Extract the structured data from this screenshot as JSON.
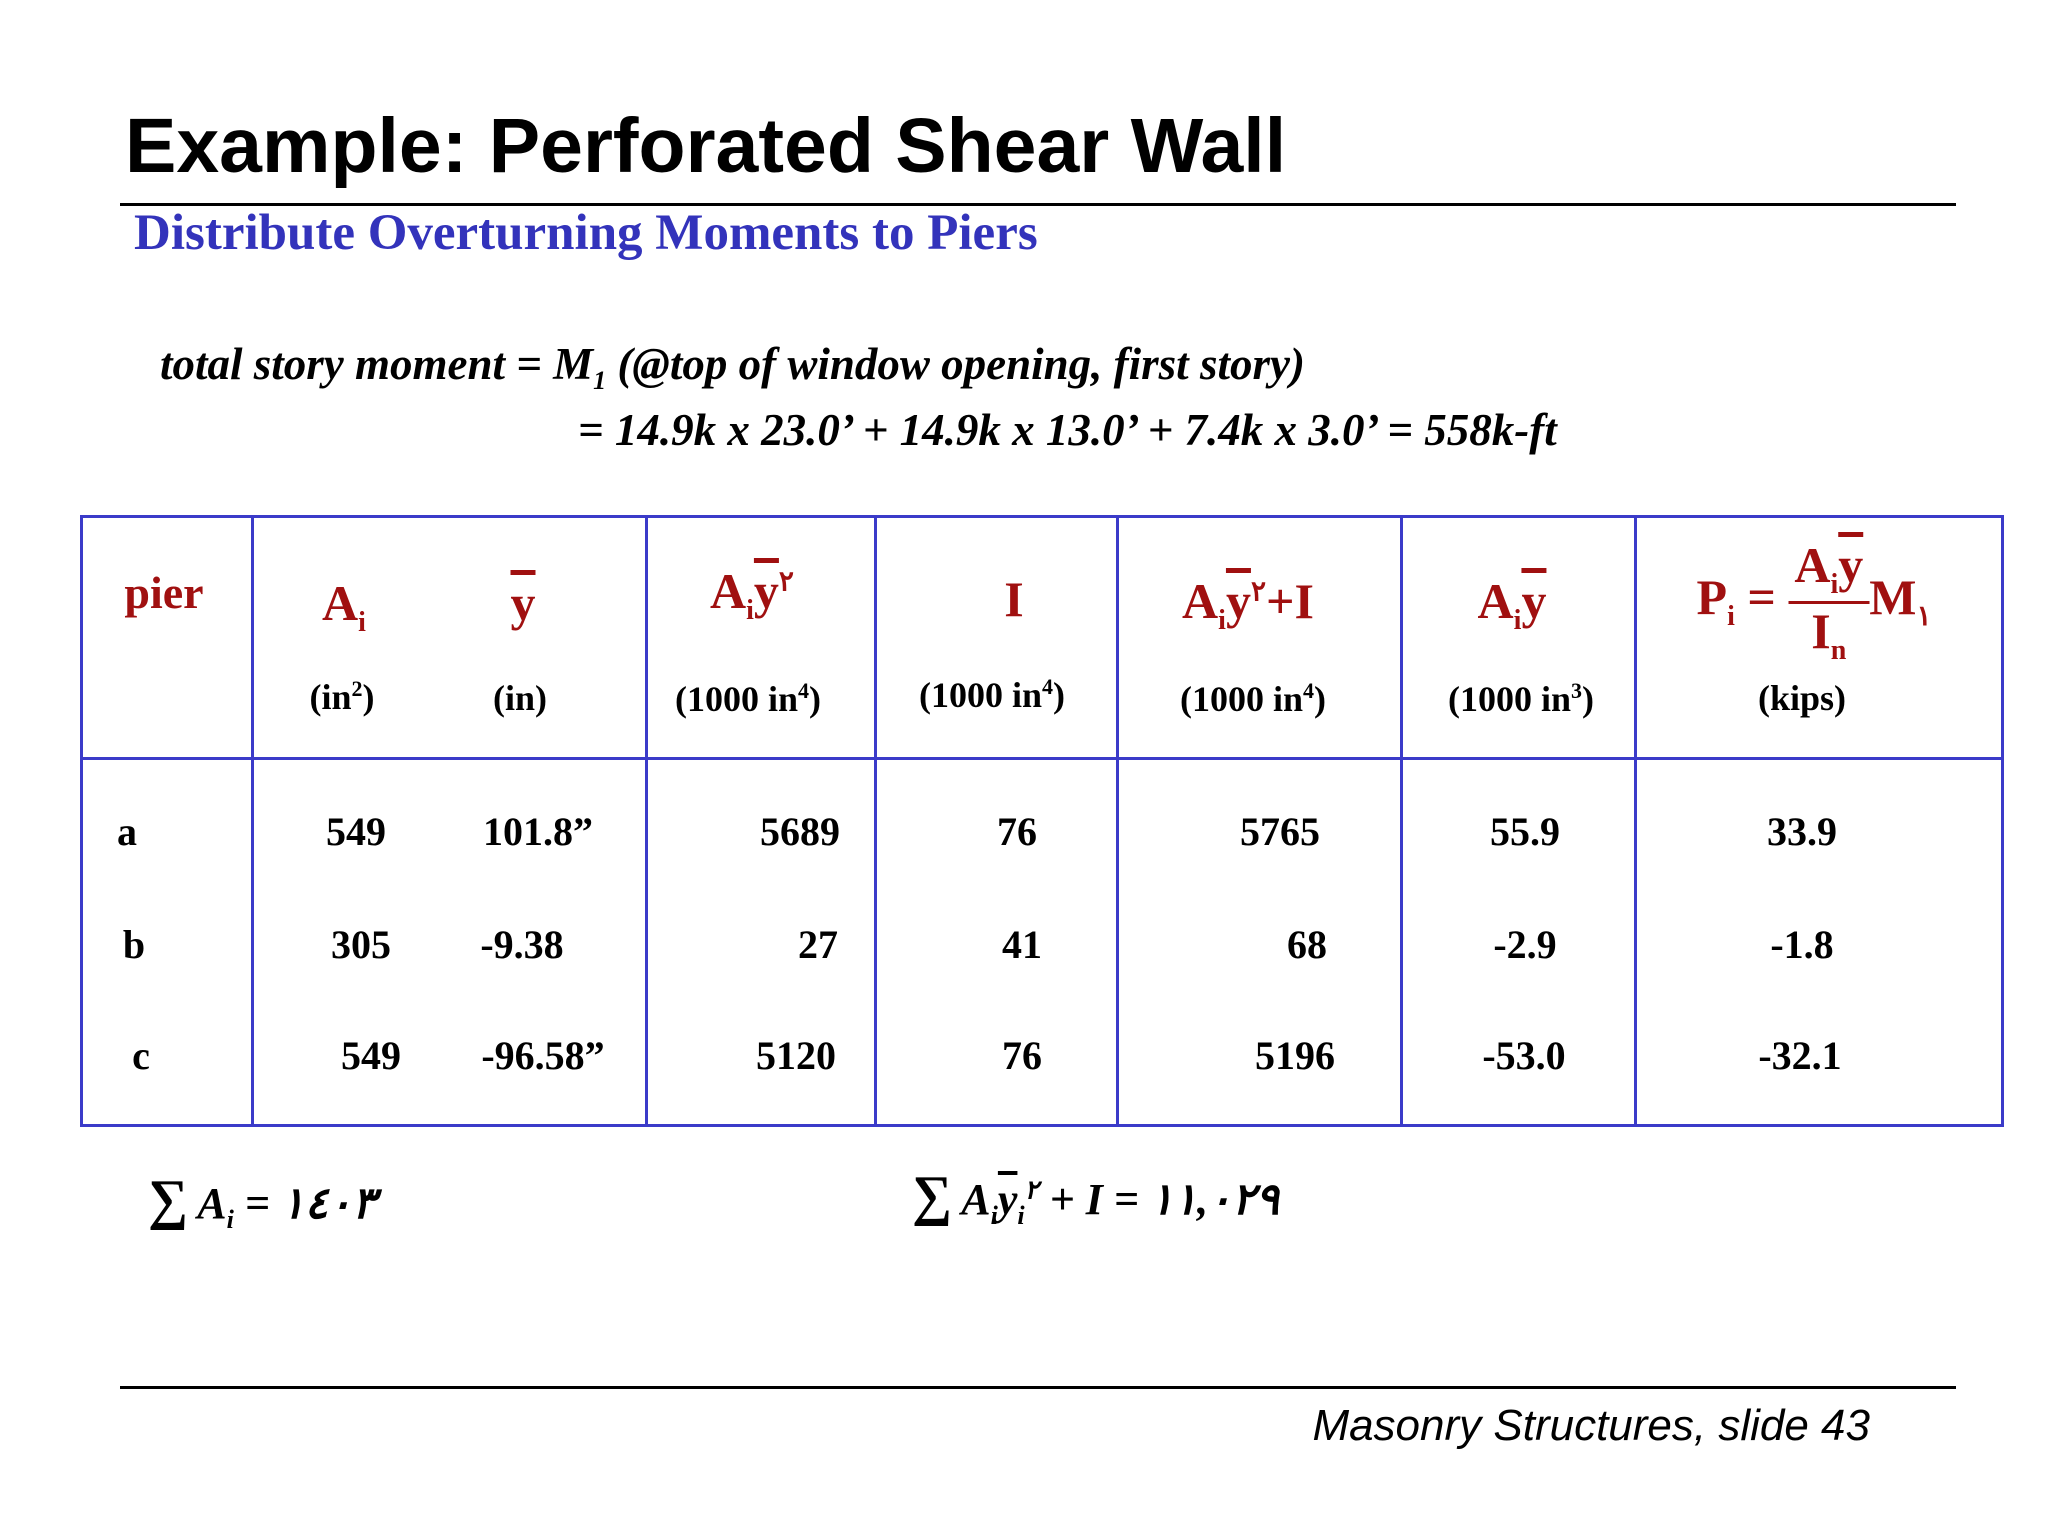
{
  "slide": {
    "title": "Example: Perforated Shear Wall",
    "subtitle": "Distribute Overturning Moments to Piers"
  },
  "equation": {
    "line1_pre": "total story moment = M",
    "line1_sub": "1",
    "line1_post": " (@top of window opening, first story)",
    "line2": "= 14.9k x 23.0’ + 14.9k x 13.0’ + 7.4k x 3.0’ = 558k-ft"
  },
  "table": {
    "header": {
      "pier": "pier",
      "ai": "A",
      "ai_sub": "i",
      "y": "y",
      "aiy2_a": "A",
      "aiy2_sub": "i",
      "aiy2_y": "y",
      "aiy2_sup": "٢",
      "i": "I",
      "aiy2i_a": "A",
      "aiy2i_sub": "i",
      "aiy2i_y": "y",
      "aiy2i_sup": "٢",
      "aiy2i_plus": "+I",
      "aiy_a": "A",
      "aiy_sub": "i",
      "aiy_y": "y",
      "p_lhs": "P",
      "p_lhs_sub": "i",
      "p_eq": "=",
      "p_num": "A",
      "p_num_sub": "i",
      "p_num_y": "y",
      "p_den": "I",
      "p_den_sub": "n",
      "p_m": "M",
      "p_m_sub": "١"
    },
    "units": {
      "ai": "(in",
      "ai_sup": "2",
      "y": "(in)",
      "aiy2": "(1000 in",
      "aiy2_sup": "4",
      "i": "(1000 in",
      "i_sup": "4",
      "aiy2i": "(1000 in",
      "aiy2i_sup": "4",
      "aiy": "(1000 in",
      "aiy_sup": "3",
      "p": "(kips)"
    },
    "rows": [
      {
        "pier": "a",
        "ai": "549",
        "y": "101.8”",
        "aiy2": "5689",
        "i": "76",
        "aiy2i": "5765",
        "aiy": "55.9",
        "p": "33.9"
      },
      {
        "pier": "b",
        "ai": "305",
        "y": "-9.38",
        "aiy2": "27",
        "i": "41",
        "aiy2i": "68",
        "aiy": "-2.9",
        "p": "-1.8"
      },
      {
        "pier": "c",
        "ai": "549",
        "y": "-96.58”",
        "aiy2": "5120",
        "i": "76",
        "aiy2i": "5196",
        "aiy": "-53.0",
        "p": "-32.1"
      }
    ]
  },
  "sums": {
    "sum_ai_lhs": "A",
    "sum_ai_sub": "i",
    "sum_ai_value": " = ١٤٠٣",
    "sum_aiy2i_a": "A",
    "sum_aiy2i_sub": "i",
    "sum_aiy2i_y": "y",
    "sum_aiy2i_ysub": "i",
    "sum_aiy2i_sup": "٢",
    "sum_aiy2i_value": " + I = ١١,٠٢٩"
  },
  "footer": "Masonry Structures, slide 43"
}
